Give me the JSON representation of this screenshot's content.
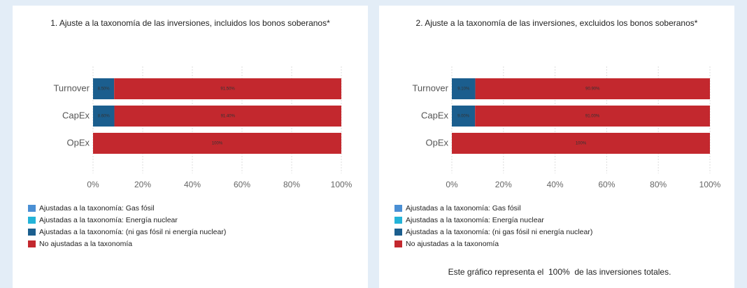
{
  "chart_data": [
    {
      "type": "stacked-barh",
      "title": "1. Ajuste a la taxonomía de las inversiones, incluidos los bonos soberanos*",
      "categories": [
        "Turnover",
        "CapEx",
        "OpEx"
      ],
      "series": [
        {
          "name": "Ajustadas a la taxonomía: Gas fósil",
          "color": "#4a8fd4",
          "values": [
            0,
            0,
            0
          ]
        },
        {
          "name": "Ajustadas a la taxonomía: Energía nuclear",
          "color": "#23b3d8",
          "values": [
            0,
            0,
            0
          ]
        },
        {
          "name": "Ajustadas a la taxonomía: (ni gas fósil ni energía nuclear)",
          "color": "#1b5e8e",
          "values": [
            8.5,
            8.6,
            0
          ],
          "value_labels": [
            "8.50%",
            "8.60%",
            null
          ]
        },
        {
          "name": "No ajustadas a la taxonomía",
          "color": "#c3282e",
          "values": [
            91.5,
            91.4,
            100
          ],
          "value_labels": [
            "91.50%",
            "91.40%",
            "100%"
          ]
        }
      ],
      "xlim": [
        0,
        100
      ],
      "xticks": [
        {
          "value": 0,
          "label": "0%"
        },
        {
          "value": 20,
          "label": "20%"
        },
        {
          "value": 40,
          "label": "40%"
        },
        {
          "value": 60,
          "label": "60%"
        },
        {
          "value": 80,
          "label": "80%"
        },
        {
          "value": 100,
          "label": "100%"
        }
      ],
      "grid": true
    },
    {
      "type": "stacked-barh",
      "title": "2. Ajuste a la taxonomía de las inversiones, excluidos los bonos soberanos*",
      "categories": [
        "Turnover",
        "CapEx",
        "OpEx"
      ],
      "series": [
        {
          "name": "Ajustadas a la taxonomía: Gas fósil",
          "color": "#4a8fd4",
          "values": [
            0,
            0,
            0
          ]
        },
        {
          "name": "Ajustadas a la taxonomía: Energía nuclear",
          "color": "#23b3d8",
          "values": [
            0,
            0,
            0
          ]
        },
        {
          "name": "Ajustadas a la taxonomía: (ni gas fósil ni energía nuclear)",
          "color": "#1b5e8e",
          "values": [
            9.1,
            9.0,
            0
          ],
          "value_labels": [
            "9.10%",
            "9.00%",
            null
          ]
        },
        {
          "name": "No ajustadas a la taxonomía",
          "color": "#c3282e",
          "values": [
            90.9,
            91.0,
            100
          ],
          "value_labels": [
            "90.90%",
            "91.00%",
            "100%"
          ]
        }
      ],
      "xlim": [
        0,
        100
      ],
      "xticks": [
        {
          "value": 0,
          "label": "0%"
        },
        {
          "value": 20,
          "label": "20%"
        },
        {
          "value": 40,
          "label": "40%"
        },
        {
          "value": 60,
          "label": "60%"
        },
        {
          "value": 80,
          "label": "80%"
        },
        {
          "value": 100,
          "label": "100%"
        }
      ],
      "grid": true,
      "note": "Este gráfico representa el  100%  de las inversiones totales."
    }
  ]
}
